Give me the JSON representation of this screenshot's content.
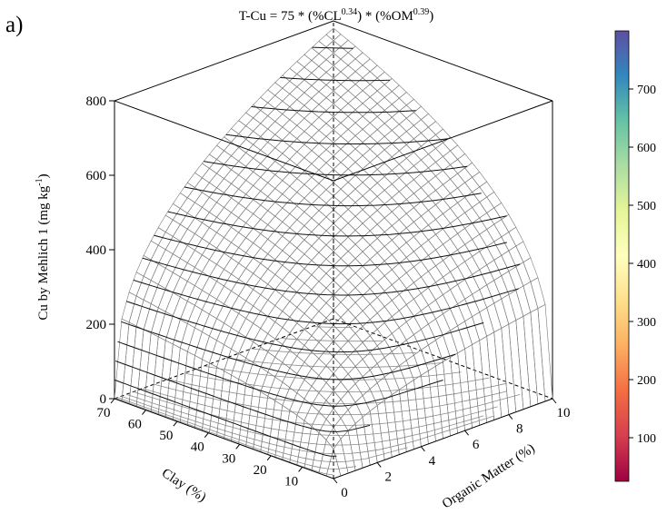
{
  "panel_label": "a)",
  "chart_data": {
    "type": "surface3d",
    "title": "T-Cu = 75 * (%CL0.34) * (%OM0.39)",
    "title_parts": {
      "prefix": "T-Cu = 75 * (%CL",
      "exp1": "0.34",
      "middle": ") * (%OM",
      "exp2": "0.39",
      "suffix": ")"
    },
    "equation": {
      "coefficient": 75,
      "clay_exponent": 0.34,
      "om_exponent": 0.39
    },
    "x_axis": {
      "label": "Clay (%)",
      "range": [
        0,
        70
      ],
      "ticks": [
        10,
        20,
        30,
        40,
        50,
        60,
        70
      ]
    },
    "y_axis": {
      "label": "Organic Matter (%)",
      "range": [
        0,
        10
      ],
      "ticks": [
        0,
        2,
        4,
        6,
        8,
        10
      ]
    },
    "z_axis": {
      "label_main": "Cu by Mehlich 1 (mg kg",
      "label_sup": "-1",
      "label_end": ")",
      "range": [
        0,
        800
      ],
      "ticks": [
        0,
        200,
        400,
        600,
        800
      ]
    },
    "colorbar": {
      "range": [
        25,
        800
      ],
      "ticks": [
        100,
        200,
        300,
        400,
        500,
        600,
        700
      ],
      "colormap": "Spectral",
      "colors": [
        "#9e0142",
        "#d53e4f",
        "#f46d43",
        "#fdae61",
        "#fee08b",
        "#ffffbf",
        "#e6f598",
        "#abdda4",
        "#66c2a5",
        "#3288bd",
        "#5e4fa2"
      ]
    },
    "contour_levels": [
      50,
      100,
      150,
      200,
      250,
      300,
      350,
      400,
      450,
      500,
      550,
      600,
      650,
      700,
      750
    ],
    "grid": true
  }
}
